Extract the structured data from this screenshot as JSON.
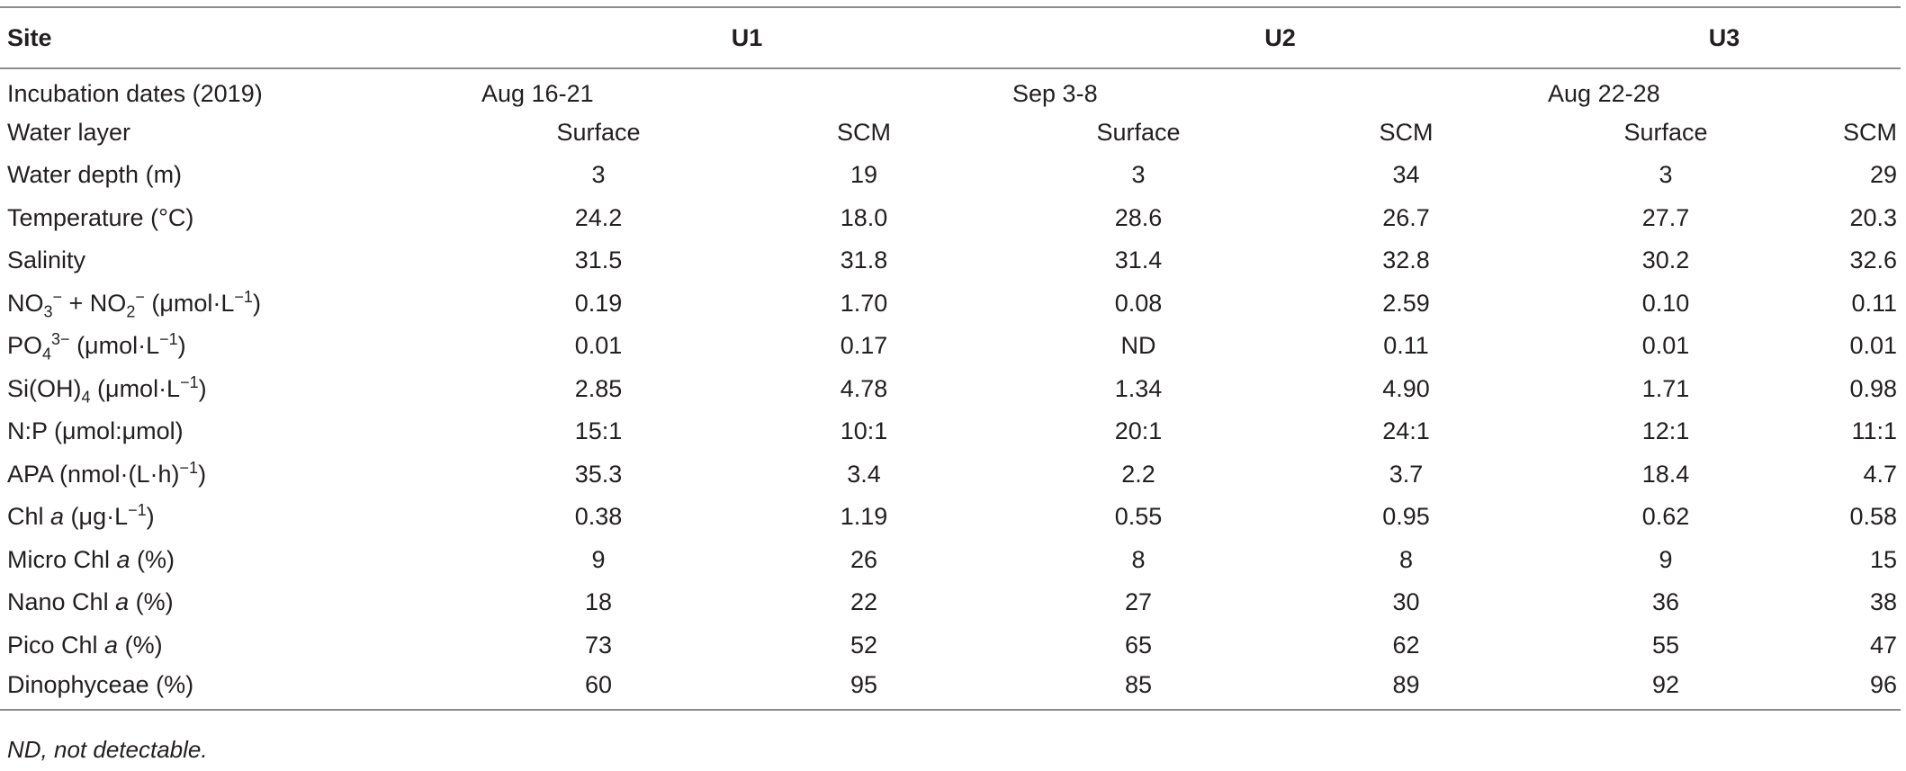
{
  "table": {
    "headers": {
      "site": "Site",
      "u1": "U1",
      "u2": "U2",
      "u3": "U3"
    },
    "incubation": {
      "label": "Incubation dates (2019)",
      "u1": "Aug 16-21",
      "u2": "Sep 3-8",
      "u3": "Aug 22-28"
    },
    "water_layer": {
      "label": "Water layer",
      "values": [
        "Surface",
        "SCM",
        "Surface",
        "SCM",
        "Surface",
        "SCM"
      ]
    },
    "water_depth": {
      "label": "Water depth (m)",
      "values": [
        "3",
        "19",
        "3",
        "34",
        "3",
        "29"
      ]
    },
    "temperature": {
      "label": "Temperature (°C)",
      "values": [
        "24.2",
        "18.0",
        "28.6",
        "26.7",
        "27.7",
        "20.3"
      ]
    },
    "salinity": {
      "label": "Salinity",
      "values": [
        "31.5",
        "31.8",
        "31.4",
        "32.8",
        "30.2",
        "32.6"
      ]
    },
    "nitrate": {
      "label_parts": {
        "no3": "NO",
        "sub3": "3",
        "sup3": "−",
        "plus": " + NO",
        "sub2": "2",
        "sup2": "−",
        "unit": " (μmol·L",
        "unit_sup": "−1",
        "unit_close": ")"
      },
      "values": [
        "0.19",
        "1.70",
        "0.08",
        "2.59",
        "0.10",
        "0.11"
      ]
    },
    "phosphate": {
      "label_parts": {
        "po": "PO",
        "sub": "4",
        "sup": "3−",
        "unit": " (μmol·L",
        "unit_sup": "−1",
        "unit_close": ")"
      },
      "values": [
        "0.01",
        "0.17",
        "ND",
        "0.11",
        "0.01",
        "0.01"
      ]
    },
    "silicate": {
      "label_parts": {
        "si": "Si(OH)",
        "sub": "4",
        "unit": " (μmol·L",
        "unit_sup": "−1",
        "unit_close": ")"
      },
      "values": [
        "2.85",
        "4.78",
        "1.34",
        "4.90",
        "1.71",
        "0.98"
      ]
    },
    "np_ratio": {
      "label": "N:P (μmol:μmol)",
      "values": [
        "15:1",
        "10:1",
        "20:1",
        "24:1",
        "12:1",
        "11:1"
      ]
    },
    "apa": {
      "label_parts": {
        "text": "APA (nmol·(L·h)",
        "sup": "−1",
        "close": ")"
      },
      "values": [
        "35.3",
        "3.4",
        "2.2",
        "3.7",
        "18.4",
        "4.7"
      ]
    },
    "chl_a": {
      "label_parts": {
        "chl": "Chl ",
        "a": "a",
        "unit": " (μg·L",
        "unit_sup": "−1",
        "unit_close": ")"
      },
      "values": [
        "0.38",
        "1.19",
        "0.55",
        "0.95",
        "0.62",
        "0.58"
      ]
    },
    "micro_chl": {
      "label_parts": {
        "pre": "Micro Chl ",
        "a": "a",
        "post": " (%)"
      },
      "values": [
        "9",
        "26",
        "8",
        "8",
        "9",
        "15"
      ]
    },
    "nano_chl": {
      "label_parts": {
        "pre": "Nano Chl ",
        "a": "a",
        "post": " (%)"
      },
      "values": [
        "18",
        "22",
        "27",
        "30",
        "36",
        "38"
      ]
    },
    "pico_chl": {
      "label_parts": {
        "pre": "Pico Chl ",
        "a": "a",
        "post": " (%)"
      },
      "values": [
        "73",
        "52",
        "65",
        "62",
        "55",
        "47"
      ]
    },
    "dinophyceae": {
      "label": "Dinophyceae (%)",
      "values": [
        "60",
        "95",
        "85",
        "89",
        "92",
        "96"
      ]
    }
  },
  "footnote": "ND, not detectable."
}
